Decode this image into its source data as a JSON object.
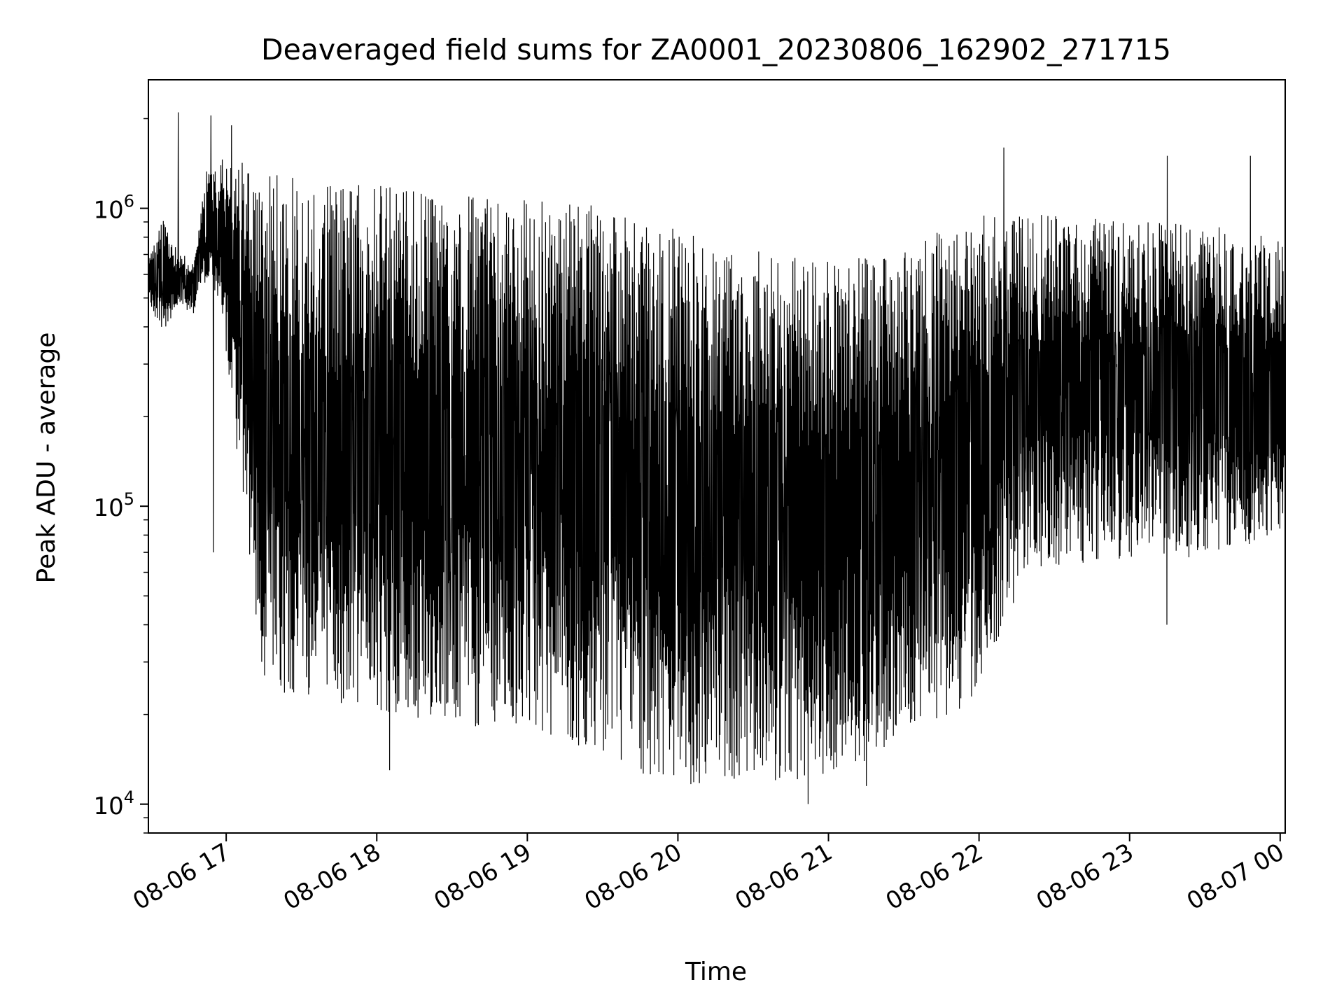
{
  "chart_data": {
    "type": "line",
    "title": "Deaveraged field sums for ZA0001_20230806_162902_271715",
    "xlabel": "Time",
    "ylabel": "Peak ADU - average",
    "x_scale": "time",
    "y_scale": "log",
    "xlim": [
      "2023-08-06 16:29",
      "2023-08-07 00:02"
    ],
    "ylim": [
      8000,
      2700000
    ],
    "x_ticks": [
      {
        "value": "2023-08-06 17:00",
        "label": "08-06 17"
      },
      {
        "value": "2023-08-06 18:00",
        "label": "08-06 18"
      },
      {
        "value": "2023-08-06 19:00",
        "label": "08-06 19"
      },
      {
        "value": "2023-08-06 20:00",
        "label": "08-06 20"
      },
      {
        "value": "2023-08-06 21:00",
        "label": "08-06 21"
      },
      {
        "value": "2023-08-06 22:00",
        "label": "08-06 22"
      },
      {
        "value": "2023-08-06 23:00",
        "label": "08-06 23"
      },
      {
        "value": "2023-08-07 00:00",
        "label": "08-07 00"
      }
    ],
    "y_ticks": [
      {
        "value": 10000,
        "base": "10",
        "exp": "4"
      },
      {
        "value": 100000,
        "base": "10",
        "exp": "5"
      },
      {
        "value": 1000000,
        "base": "10",
        "exp": "6"
      }
    ],
    "grid": true,
    "minor_grid": true,
    "line_color": "#000000",
    "envelope_points": [
      {
        "t": "2023-08-06 16:29",
        "high": 650000,
        "low": 480000
      },
      {
        "t": "2023-08-06 16:35",
        "high": 900000,
        "low": 400000
      },
      {
        "t": "2023-08-06 16:41",
        "high": 700000,
        "low": 480000
      },
      {
        "t": "2023-08-06 16:47",
        "high": 650000,
        "low": 450000
      },
      {
        "t": "2023-08-06 16:52",
        "high": 1300000,
        "low": 600000
      },
      {
        "t": "2023-08-06 16:58",
        "high": 1400000,
        "low": 500000
      },
      {
        "t": "2023-08-06 17:05",
        "high": 1300000,
        "low": 150000
      },
      {
        "t": "2023-08-06 17:15",
        "high": 1100000,
        "low": 30000
      },
      {
        "t": "2023-08-06 17:30",
        "high": 1050000,
        "low": 27000
      },
      {
        "t": "2023-08-06 18:00",
        "high": 1000000,
        "low": 25000
      },
      {
        "t": "2023-08-06 18:30",
        "high": 950000,
        "low": 22000
      },
      {
        "t": "2023-08-06 19:00",
        "high": 900000,
        "low": 22000
      },
      {
        "t": "2023-08-06 19:30",
        "high": 850000,
        "low": 17000
      },
      {
        "t": "2023-08-06 20:00",
        "high": 700000,
        "low": 14000
      },
      {
        "t": "2023-08-06 20:30",
        "high": 600000,
        "low": 14000
      },
      {
        "t": "2023-08-06 21:00",
        "high": 550000,
        "low": 14000
      },
      {
        "t": "2023-08-06 21:30",
        "high": 600000,
        "low": 20000
      },
      {
        "t": "2023-08-06 21:55",
        "high": 800000,
        "low": 25000
      },
      {
        "t": "2023-08-06 22:20",
        "high": 850000,
        "low": 70000
      },
      {
        "t": "2023-08-06 23:00",
        "high": 800000,
        "low": 75000
      },
      {
        "t": "2023-08-06 23:30",
        "high": 800000,
        "low": 75000
      },
      {
        "t": "2023-08-07 00:02",
        "high": 700000,
        "low": 90000
      }
    ],
    "notable_peaks": [
      {
        "t": "2023-08-06 16:41",
        "value": 2100000
      },
      {
        "t": "2023-08-06 16:54",
        "value": 2050000
      },
      {
        "t": "2023-08-06 17:02",
        "value": 1900000
      },
      {
        "t": "2023-08-06 22:10",
        "value": 1600000
      },
      {
        "t": "2023-08-06 23:15",
        "value": 1500000
      },
      {
        "t": "2023-08-06 23:48",
        "value": 1500000
      }
    ],
    "notable_troughs": [
      {
        "t": "2023-08-06 16:55",
        "value": 70000
      },
      {
        "t": "2023-08-06 18:05",
        "value": 13000
      },
      {
        "t": "2023-08-06 20:52",
        "value": 10000
      },
      {
        "t": "2023-08-06 21:15",
        "value": 11500
      },
      {
        "t": "2023-08-06 23:15",
        "value": 40000
      }
    ]
  }
}
